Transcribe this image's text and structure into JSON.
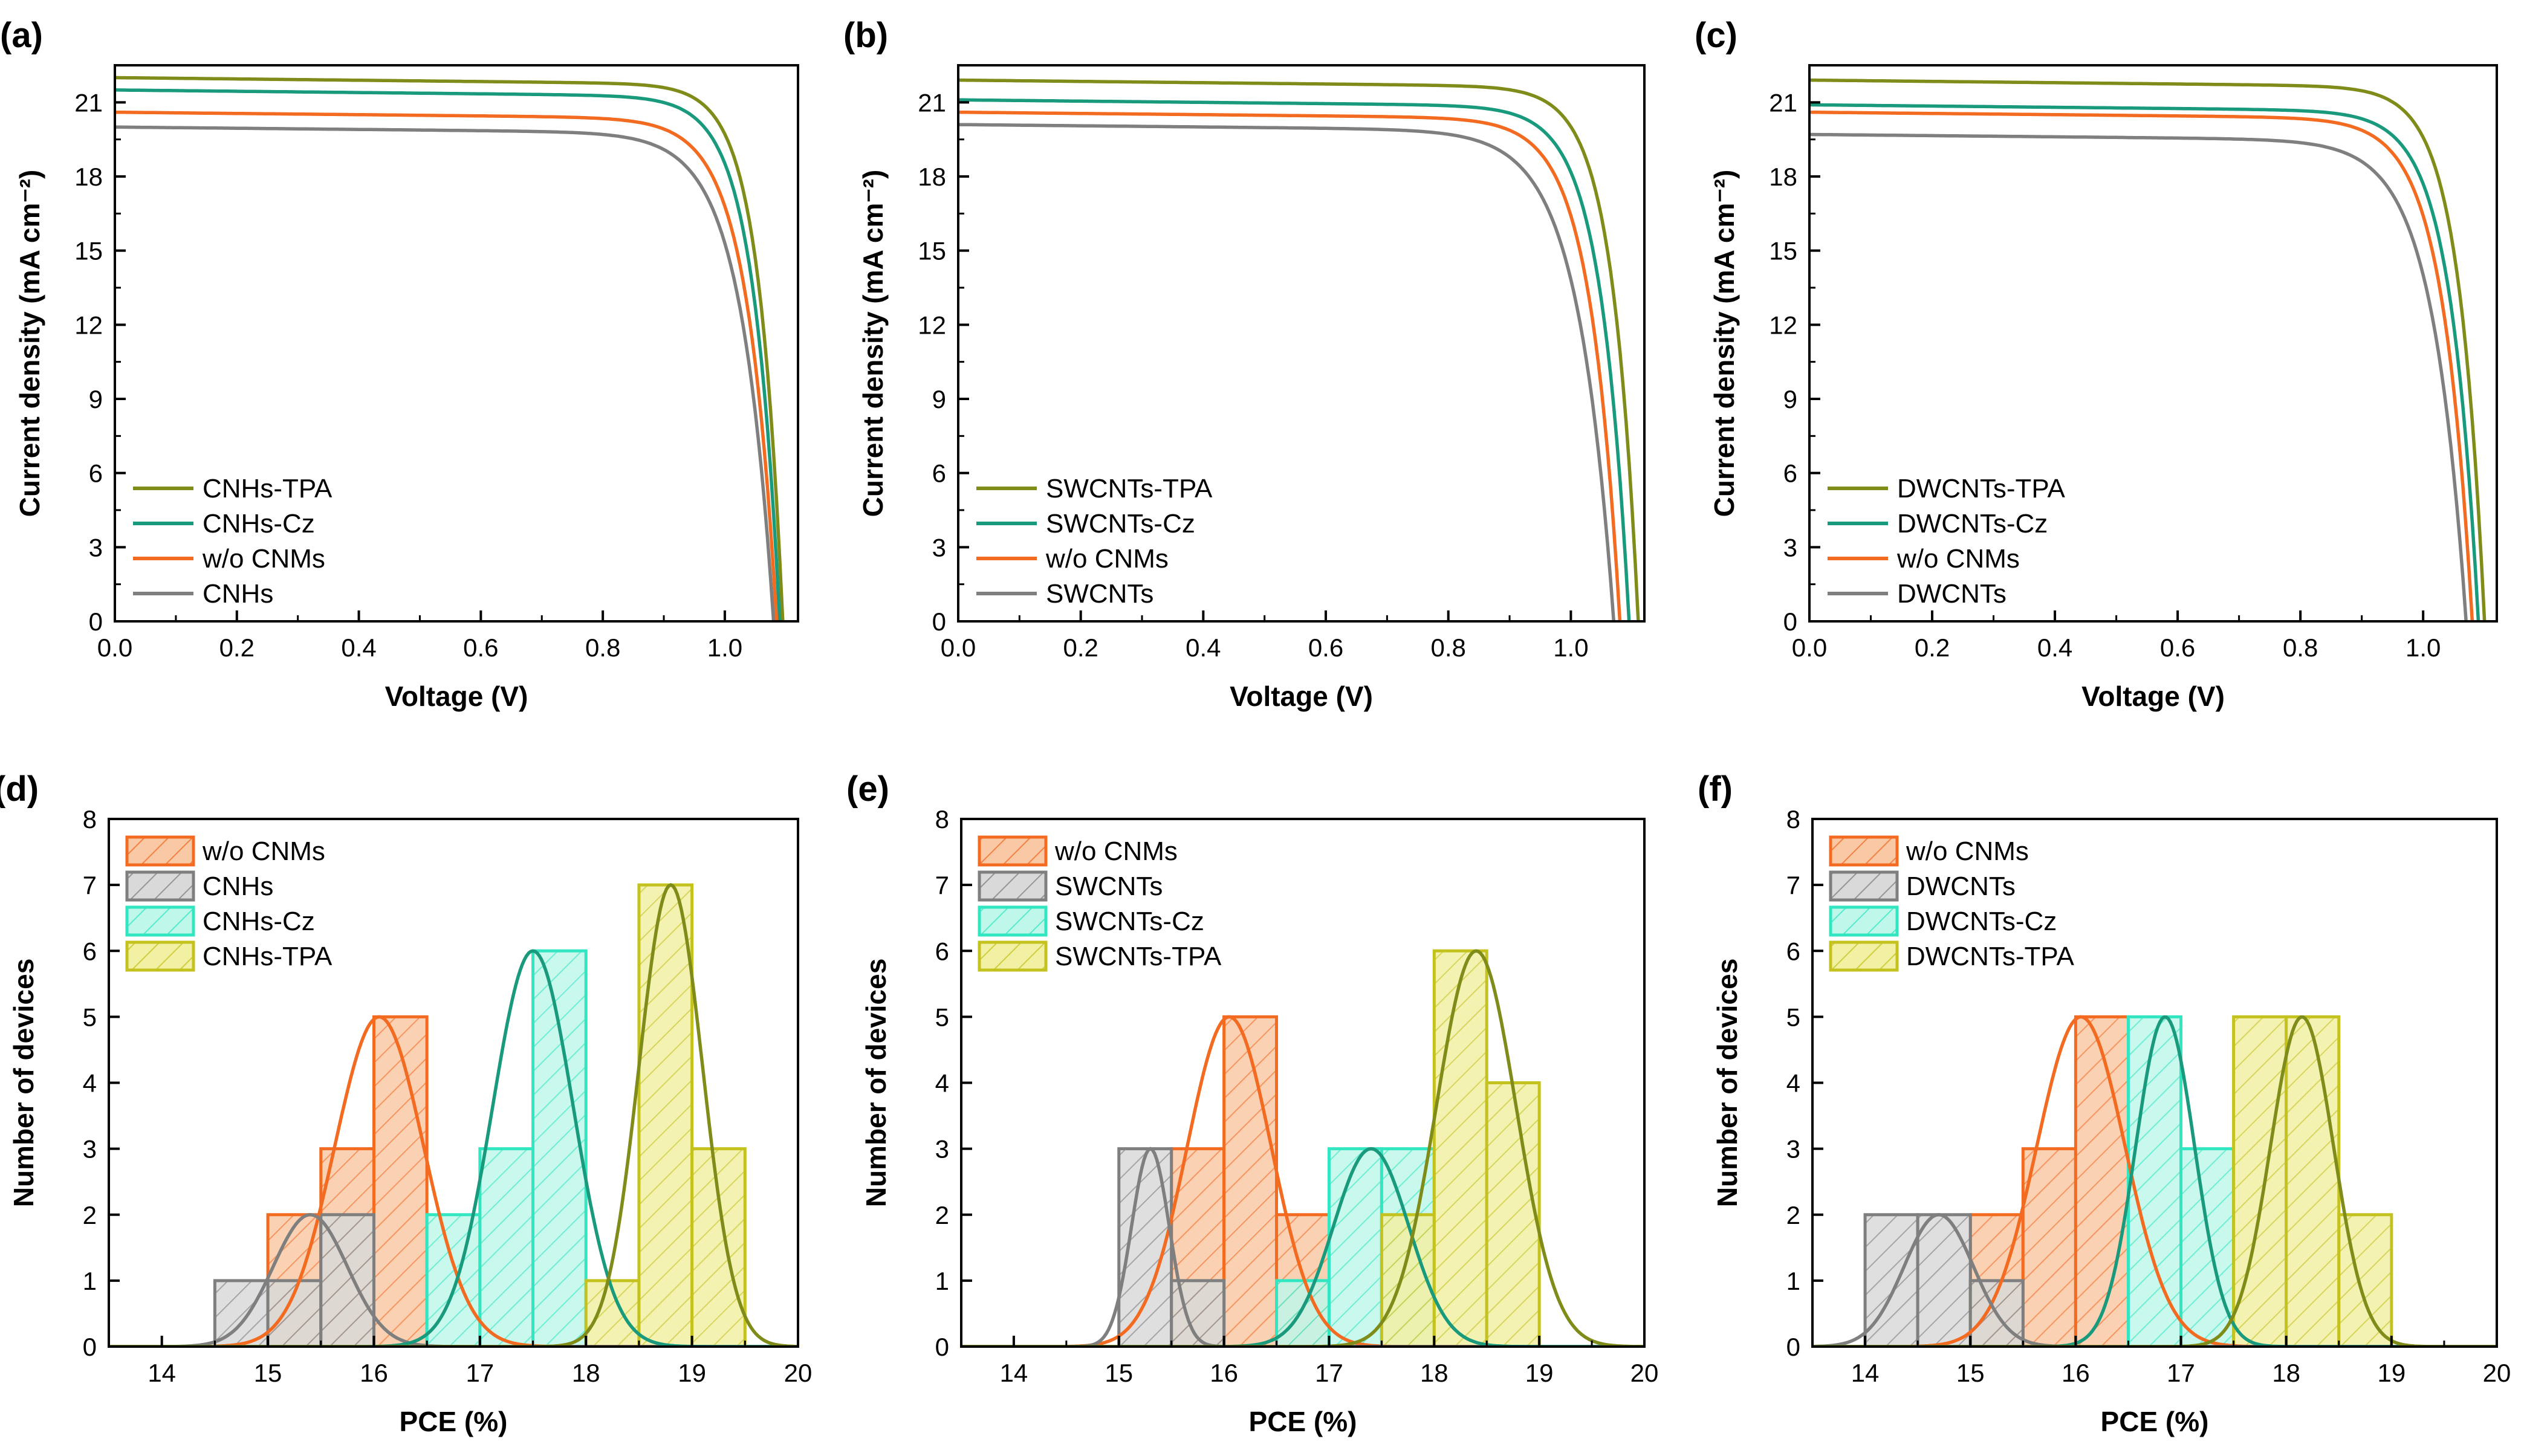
{
  "colors": {
    "wo": "#f26b21",
    "wo_fill": "#f9c9a6",
    "bare": "#7f7f7f",
    "bare_fill": "#d9d9d9",
    "cz": "#1a9a7d",
    "cz_hist": "#33e6c2",
    "cz_fill": "#bff7ea",
    "tpa": "#7f8c1a",
    "tpa_hist": "#c4c21f",
    "tpa_fill": "#f2f0a3"
  },
  "chart_data": [
    {
      "panel": "(a)",
      "type": "line",
      "xlabel": "Voltage (V)",
      "ylabel": "Current density (mA cm⁻²)",
      "xlim": [
        0,
        1.12
      ],
      "ylim": [
        0,
        22.5
      ],
      "xticks": [
        "0.0",
        "0.2",
        "0.4",
        "0.6",
        "0.8",
        "1.0"
      ],
      "yticks": [
        "0",
        "3",
        "6",
        "9",
        "12",
        "15",
        "18",
        "21"
      ],
      "series": [
        {
          "name": "CNHs-TPA",
          "key": "tpa",
          "jsc": 22.0,
          "voc": 1.095,
          "ff": 0.8
        },
        {
          "name": "CNHs-Cz",
          "key": "cz",
          "jsc": 21.5,
          "voc": 1.09,
          "ff": 0.785
        },
        {
          "name": "w/o CNMs",
          "key": "wo",
          "jsc": 20.6,
          "voc": 1.085,
          "ff": 0.765
        },
        {
          "name": "CNHs",
          "key": "bare",
          "jsc": 20.0,
          "voc": 1.08,
          "ff": 0.745
        }
      ]
    },
    {
      "panel": "(b)",
      "type": "line",
      "xlabel": "Voltage (V)",
      "ylabel": "Current density (mA cm⁻²)",
      "xlim": [
        0,
        1.12
      ],
      "ylim": [
        0,
        22.5
      ],
      "xticks": [
        "0.0",
        "0.2",
        "0.4",
        "0.6",
        "0.8",
        "1.0"
      ],
      "yticks": [
        "0",
        "3",
        "6",
        "9",
        "12",
        "15",
        "18",
        "21"
      ],
      "series": [
        {
          "name": "SWCNTs-TPA",
          "key": "tpa",
          "jsc": 21.9,
          "voc": 1.11,
          "ff": 0.79
        },
        {
          "name": "SWCNTs-Cz",
          "key": "cz",
          "jsc": 21.1,
          "voc": 1.095,
          "ff": 0.775
        },
        {
          "name": "w/o CNMs",
          "key": "wo",
          "jsc": 20.6,
          "voc": 1.08,
          "ff": 0.765
        },
        {
          "name": "SWCNTs",
          "key": "bare",
          "jsc": 20.1,
          "voc": 1.07,
          "ff": 0.725
        }
      ]
    },
    {
      "panel": "(c)",
      "type": "line",
      "xlabel": "Voltage (V)",
      "ylabel": "Current density (mA cm⁻²)",
      "xlim": [
        0,
        1.12
      ],
      "ylim": [
        0,
        22.5
      ],
      "xticks": [
        "0.0",
        "0.2",
        "0.4",
        "0.6",
        "0.8",
        "1.0"
      ],
      "yticks": [
        "0",
        "3",
        "6",
        "9",
        "12",
        "15",
        "18",
        "21"
      ],
      "series": [
        {
          "name": "DWCNTs-TPA",
          "key": "tpa",
          "jsc": 21.9,
          "voc": 1.1,
          "ff": 0.79
        },
        {
          "name": "DWCNTs-Cz",
          "key": "cz",
          "jsc": 20.9,
          "voc": 1.09,
          "ff": 0.775
        },
        {
          "name": "w/o CNMs",
          "key": "wo",
          "jsc": 20.6,
          "voc": 1.08,
          "ff": 0.765
        },
        {
          "name": "DWCNTs",
          "key": "bare",
          "jsc": 19.7,
          "voc": 1.07,
          "ff": 0.74
        }
      ]
    },
    {
      "panel": "(d)",
      "type": "bar",
      "xlabel": "PCE (%)",
      "ylabel": "Number of devices",
      "xlim": [
        13.5,
        20
      ],
      "ylim": [
        0,
        8
      ],
      "xticks": [
        "14",
        "15",
        "16",
        "17",
        "18",
        "19",
        "20"
      ],
      "yticks": [
        "0",
        "1",
        "2",
        "3",
        "4",
        "5",
        "6",
        "7",
        "8"
      ],
      "series": [
        {
          "name": "w/o CNMs",
          "key": "wo",
          "bins": [
            [
              15,
              15.5,
              2
            ],
            [
              15.5,
              16,
              3
            ],
            [
              16,
              16.5,
              5
            ]
          ],
          "mu": 16.05,
          "sigma": 0.42,
          "peak": 5
        },
        {
          "name": "CNHs",
          "key": "bare",
          "bins": [
            [
              14.5,
              15,
              1
            ],
            [
              15,
              15.5,
              1
            ],
            [
              15.5,
              16,
              2
            ]
          ],
          "mu": 15.4,
          "sigma": 0.35,
          "peak": 2
        },
        {
          "name": "CNHs-Cz",
          "key": "cz",
          "bins": [
            [
              16.5,
              17,
              2
            ],
            [
              17,
              17.5,
              3
            ],
            [
              17.5,
              18,
              6
            ]
          ],
          "mu": 17.5,
          "sigma": 0.38,
          "peak": 6
        },
        {
          "name": "CNHs-TPA",
          "key": "tpa",
          "bins": [
            [
              18,
              18.5,
              1
            ],
            [
              18.5,
              19,
              7
            ],
            [
              19,
              19.5,
              3
            ]
          ],
          "mu": 18.8,
          "sigma": 0.3,
          "peak": 7
        }
      ]
    },
    {
      "panel": "(e)",
      "type": "bar",
      "xlabel": "PCE (%)",
      "ylabel": "Number of devices",
      "xlim": [
        13.5,
        20
      ],
      "ylim": [
        0,
        8
      ],
      "xticks": [
        "14",
        "15",
        "16",
        "17",
        "18",
        "19",
        "20"
      ],
      "yticks": [
        "0",
        "1",
        "2",
        "3",
        "4",
        "5",
        "6",
        "7",
        "8"
      ],
      "series": [
        {
          "name": "w/o CNMs",
          "key": "wo",
          "bins": [
            [
              15.5,
              16,
              3
            ],
            [
              16,
              16.5,
              5
            ],
            [
              16.5,
              17,
              2
            ]
          ],
          "mu": 16.05,
          "sigma": 0.4,
          "peak": 5
        },
        {
          "name": "SWCNTs",
          "key": "bare",
          "bins": [
            [
              15,
              15.5,
              3
            ],
            [
              15.5,
              16,
              1
            ]
          ],
          "mu": 15.3,
          "sigma": 0.18,
          "peak": 3
        },
        {
          "name": "SWCNTs-Cz",
          "key": "cz",
          "bins": [
            [
              16.5,
              17,
              1
            ],
            [
              17,
              17.5,
              3
            ],
            [
              17.5,
              18,
              3
            ]
          ],
          "mu": 17.4,
          "sigma": 0.36,
          "peak": 3
        },
        {
          "name": "SWCNTs-TPA",
          "key": "tpa",
          "bins": [
            [
              17.5,
              18,
              2
            ],
            [
              18,
              18.5,
              6
            ],
            [
              18.5,
              19,
              4
            ]
          ],
          "mu": 18.4,
          "sigma": 0.38,
          "peak": 6
        }
      ]
    },
    {
      "panel": "(f)",
      "type": "bar",
      "xlabel": "PCE (%)",
      "ylabel": "Number of devices",
      "xlim": [
        13.5,
        20
      ],
      "ylim": [
        0,
        8
      ],
      "xticks": [
        "14",
        "15",
        "16",
        "17",
        "18",
        "19",
        "20"
      ],
      "yticks": [
        "0",
        "1",
        "2",
        "3",
        "4",
        "5",
        "6",
        "7",
        "8"
      ],
      "series": [
        {
          "name": "w/o CNMs",
          "key": "wo",
          "bins": [
            [
              15,
              15.5,
              2
            ],
            [
              15.5,
              16,
              3
            ],
            [
              16,
              16.5,
              5
            ]
          ],
          "mu": 16.05,
          "sigma": 0.42,
          "peak": 5
        },
        {
          "name": "DWCNTs",
          "key": "bare",
          "bins": [
            [
              14,
              14.5,
              2
            ],
            [
              14.5,
              15,
              2
            ],
            [
              15,
              15.5,
              1
            ]
          ],
          "mu": 14.7,
          "sigma": 0.33,
          "peak": 2
        },
        {
          "name": "DWCNTs-Cz",
          "key": "cz",
          "bins": [
            [
              16.5,
              17,
              5
            ],
            [
              17,
              17.5,
              3
            ]
          ],
          "mu": 16.85,
          "sigma": 0.28,
          "peak": 5
        },
        {
          "name": "DWCNTs-TPA",
          "key": "tpa",
          "bins": [
            [
              17.5,
              18,
              5
            ],
            [
              18,
              18.5,
              5
            ],
            [
              18.5,
              19,
              2
            ]
          ],
          "mu": 18.15,
          "sigma": 0.3,
          "peak": 5
        }
      ]
    }
  ]
}
